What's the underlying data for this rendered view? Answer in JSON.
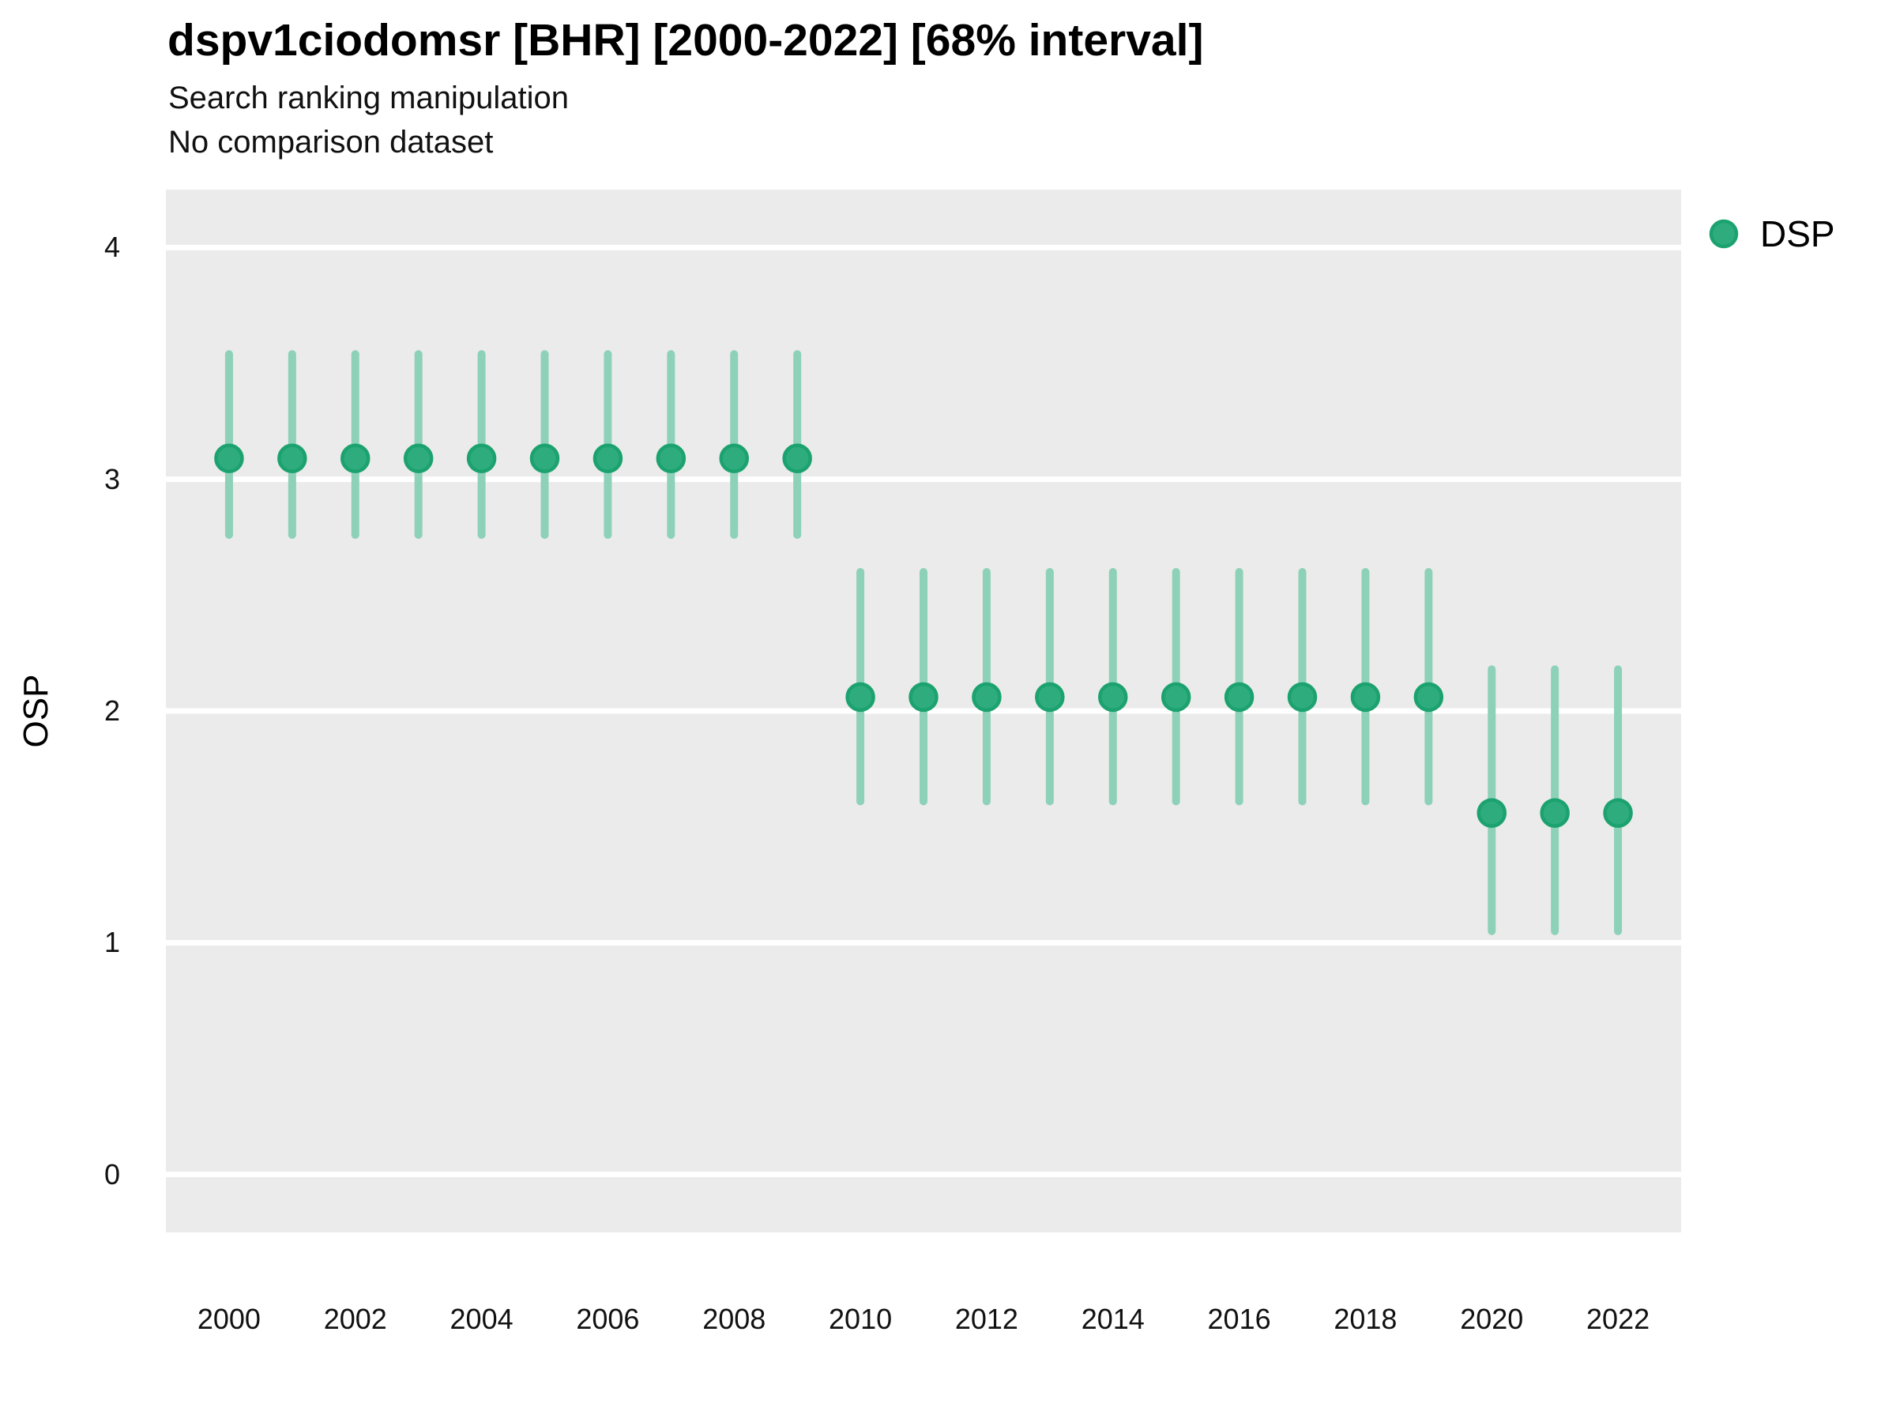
{
  "header": {
    "title": "dspv1ciodomsr [BHR] [2000-2022] [68% interval]",
    "subtitle1": "Search ranking manipulation",
    "subtitle2": "No comparison dataset"
  },
  "legend": {
    "label": "DSP",
    "position": "right-top"
  },
  "colors": {
    "point_fill": "#2eac7e",
    "point_stroke": "#1ba26f",
    "interval_bar": "#8dd1b9",
    "panel_background": "#ebebeb",
    "gridline": "#ffffff",
    "title_text": "#000000",
    "tick_text": "#111111"
  },
  "chart_data": {
    "type": "scatter",
    "subtype": "pointrange",
    "title": "dspv1ciodomsr [BHR] [2000-2022] [68% interval]",
    "subtitle": "Search ranking manipulation",
    "caption": "No comparison dataset",
    "xlabel": "",
    "ylabel": "OSP",
    "interval": "68%",
    "xlim": [
      1999,
      2023
    ],
    "ylim": [
      -0.25,
      4.25
    ],
    "yticks": [
      0,
      1,
      2,
      3,
      4
    ],
    "xticks": [
      2000,
      2002,
      2004,
      2006,
      2008,
      2010,
      2012,
      2014,
      2016,
      2018,
      2020,
      2022
    ],
    "grid": "horizontal major only, white lines on gray panel",
    "legend_position": "right top",
    "series": [
      {
        "name": "DSP",
        "x": [
          2000,
          2001,
          2002,
          2003,
          2004,
          2005,
          2006,
          2007,
          2008,
          2009,
          2010,
          2011,
          2012,
          2013,
          2014,
          2015,
          2016,
          2017,
          2018,
          2019,
          2020,
          2021,
          2022
        ],
        "mid": [
          3.09,
          3.09,
          3.09,
          3.09,
          3.09,
          3.09,
          3.09,
          3.09,
          3.09,
          3.09,
          2.06,
          2.06,
          2.06,
          2.06,
          2.06,
          2.06,
          2.06,
          2.06,
          2.06,
          2.06,
          1.56,
          1.56,
          1.56
        ],
        "lo": [
          2.76,
          2.76,
          2.76,
          2.76,
          2.76,
          2.76,
          2.76,
          2.76,
          2.76,
          2.76,
          1.61,
          1.61,
          1.61,
          1.61,
          1.61,
          1.61,
          1.61,
          1.61,
          1.61,
          1.61,
          1.05,
          1.05,
          1.05
        ],
        "hi": [
          3.54,
          3.54,
          3.54,
          3.54,
          3.54,
          3.54,
          3.54,
          3.54,
          3.54,
          3.54,
          2.6,
          2.6,
          2.6,
          2.6,
          2.6,
          2.6,
          2.6,
          2.6,
          2.6,
          2.6,
          2.18,
          2.18,
          2.18
        ]
      }
    ]
  }
}
